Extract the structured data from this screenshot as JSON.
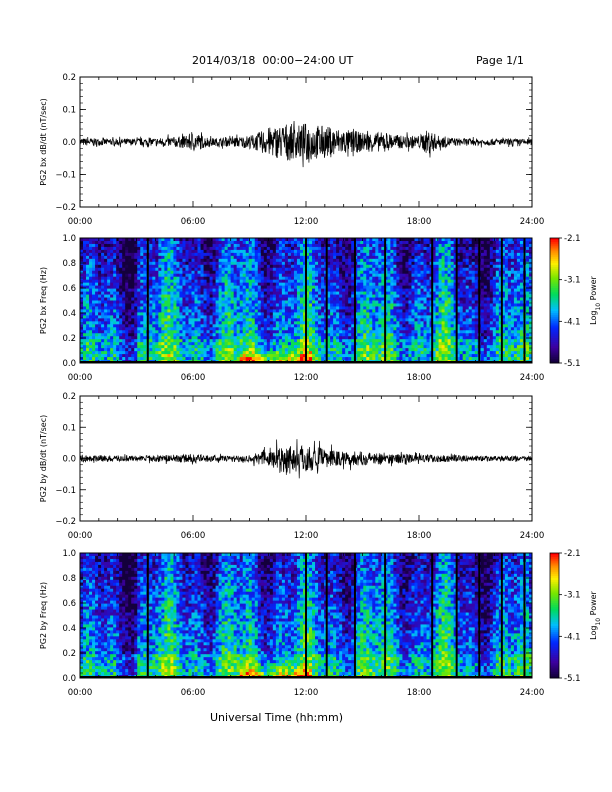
{
  "header": {
    "date_range": "2014/03/18  00:00−24:00 UT",
    "page": "Page 1/1"
  },
  "x_axis_label": "Universal Time (hh:mm)",
  "chart_data": [
    {
      "type": "line",
      "ylabel": "PG2 bx dB/dt (nT/sec)",
      "xlim": [
        0,
        24
      ],
      "ylim": [
        -0.2,
        0.2
      ],
      "x_ticks": [
        "00:00",
        "06:00",
        "12:00",
        "18:00",
        "24:00"
      ],
      "y_ticks": [
        "0.2",
        "0.1",
        "0.0",
        "−0.1",
        "−0.2"
      ],
      "series": [
        {
          "x": [
            0,
            2,
            4,
            5.5,
            6,
            7,
            8,
            9,
            9.5,
            10,
            10.5,
            11,
            11.5,
            12,
            12.5,
            13,
            13.5,
            14,
            15,
            16,
            17,
            18,
            18.5,
            19,
            20,
            22,
            24
          ],
          "amp": [
            0.012,
            0.01,
            0.012,
            0.018,
            0.03,
            0.012,
            0.014,
            0.02,
            0.03,
            0.045,
            0.05,
            0.06,
            0.05,
            0.06,
            0.055,
            0.05,
            0.045,
            0.04,
            0.03,
            0.03,
            0.02,
            0.02,
            0.04,
            0.02,
            0.012,
            0.01,
            0.01
          ]
        }
      ]
    },
    {
      "type": "heatmap",
      "ylabel": "PG2 bx Freq (Hz)",
      "xlim": [
        0,
        24
      ],
      "ylim": [
        0,
        1
      ],
      "x_ticks": [
        "00:00",
        "06:00",
        "12:00",
        "18:00",
        "24:00"
      ],
      "y_ticks": [
        "1.0",
        "0.8",
        "0.6",
        "0.4",
        "0.2",
        "0.0"
      ],
      "colorbar": {
        "label": "Log10 Power",
        "min": -5.1,
        "max": -2.1,
        "ticks": [
          "-2.1",
          "-3.1",
          "-4.1",
          "-5.1"
        ]
      },
      "gaps_hours": [
        3.6,
        12.0,
        13.1,
        14.6,
        16.2,
        18.7,
        20.0,
        21.2,
        22.4,
        23.6
      ]
    },
    {
      "type": "line",
      "ylabel": "PG2 by dB/dt (nT/sec)",
      "xlim": [
        0,
        24
      ],
      "ylim": [
        -0.2,
        0.2
      ],
      "x_ticks": [
        "00:00",
        "06:00",
        "12:00",
        "18:00",
        "24:00"
      ],
      "y_ticks": [
        "0.2",
        "0.1",
        "0.0",
        "−0.1",
        "−0.2"
      ],
      "series": [
        {
          "x": [
            0,
            2,
            4,
            6,
            7,
            8,
            9,
            9.5,
            10,
            10.5,
            11,
            11.5,
            12,
            12.5,
            13,
            14,
            15,
            16,
            17,
            18,
            19,
            20,
            22,
            24
          ],
          "amp": [
            0.01,
            0.01,
            0.01,
            0.014,
            0.01,
            0.01,
            0.012,
            0.02,
            0.03,
            0.04,
            0.05,
            0.045,
            0.045,
            0.04,
            0.03,
            0.025,
            0.022,
            0.02,
            0.015,
            0.012,
            0.012,
            0.01,
            0.008,
            0.008
          ]
        }
      ]
    },
    {
      "type": "heatmap",
      "ylabel": "PG2 by Freq (Hz)",
      "xlim": [
        0,
        24
      ],
      "ylim": [
        0,
        1
      ],
      "x_ticks": [
        "00:00",
        "06:00",
        "12:00",
        "18:00",
        "24:00"
      ],
      "y_ticks": [
        "1.0",
        "0.8",
        "0.6",
        "0.4",
        "0.2",
        "0.0"
      ],
      "colorbar": {
        "label": "Log10 Power",
        "min": -5.1,
        "max": -2.1,
        "ticks": [
          "-2.1",
          "-3.1",
          "-4.1",
          "-5.1"
        ]
      },
      "gaps_hours": [
        3.6,
        12.0,
        13.1,
        14.6,
        16.2,
        18.7,
        20.0,
        21.2,
        22.4,
        23.6
      ]
    }
  ]
}
